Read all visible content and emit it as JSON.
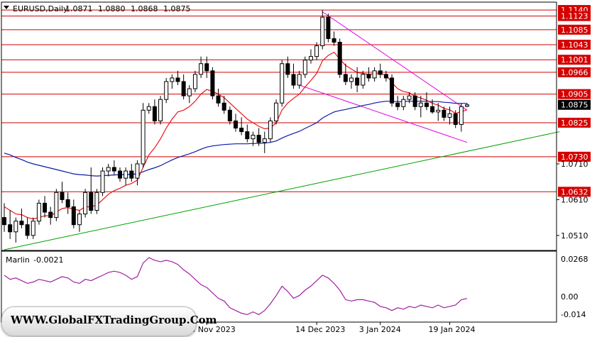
{
  "header": {
    "symbol": "EURUSD,Daily",
    "open": "1.0871",
    "high": "1.0880",
    "low": "1.0868",
    "close": "1.0875"
  },
  "indicator": {
    "name": "Marlin",
    "value": "-0.0021",
    "ticks": [
      "0.0268",
      "0.00",
      "-0.014"
    ]
  },
  "watermark": "WWW.GlobalFXTradingGroup.Com",
  "colors": {
    "bull": "#ffffff",
    "bear": "#000000",
    "level_line": "#d40000",
    "level_label_bg": "#d40000",
    "ema_fast": "#e8141a",
    "ema_slow": "#0a1aa8",
    "channel": "#e000e0",
    "trendline": "#00a000",
    "oscillator": "#a020a0"
  },
  "chart_data": {
    "type": "candlestick",
    "symbol": "EURUSD",
    "timeframe": "Daily",
    "ylim": [
      1.047,
      1.116
    ],
    "y_ticks": [
      "1.0510",
      "1.0610",
      "1.0710"
    ],
    "x_ticks": [
      "28 Nov 2023",
      "14 Dec 2023",
      "3 Jan 2024",
      "19 Jan 2024"
    ],
    "levels": [
      "1.1140",
      "1.1123",
      "1.1085",
      "1.1043",
      "1.1001",
      "1.0966",
      "1.0905",
      "1.0825",
      "1.0730",
      "1.0632"
    ],
    "current_price": "1.0875",
    "candles": [
      [
        1.056,
        1.06,
        1.052,
        1.054
      ],
      [
        1.054,
        1.058,
        1.05,
        1.052
      ],
      [
        1.052,
        1.056,
        1.049,
        1.055
      ],
      [
        1.055,
        1.0585,
        1.053,
        1.054
      ],
      [
        1.054,
        1.056,
        1.05,
        1.051
      ],
      [
        1.051,
        1.056,
        1.05,
        1.055
      ],
      [
        1.055,
        1.061,
        1.054,
        1.06
      ],
      [
        1.06,
        1.062,
        1.056,
        1.0575
      ],
      [
        1.0575,
        1.059,
        1.054,
        1.056
      ],
      [
        1.056,
        1.064,
        1.055,
        1.063
      ],
      [
        1.063,
        1.066,
        1.06,
        1.061
      ],
      [
        1.061,
        1.063,
        1.057,
        1.059
      ],
      [
        1.059,
        1.061,
        1.053,
        1.054
      ],
      [
        1.054,
        1.058,
        1.052,
        1.057
      ],
      [
        1.057,
        1.064,
        1.056,
        1.063
      ],
      [
        1.063,
        1.07,
        1.057,
        1.058
      ],
      [
        1.058,
        1.064,
        1.057,
        1.063
      ],
      [
        1.063,
        1.07,
        1.062,
        1.069
      ],
      [
        1.069,
        1.071,
        1.0675,
        1.07
      ],
      [
        1.07,
        1.072,
        1.068,
        1.069
      ],
      [
        1.069,
        1.07,
        1.066,
        1.067
      ],
      [
        1.067,
        1.07,
        1.065,
        1.069
      ],
      [
        1.069,
        1.071,
        1.066,
        1.067
      ],
      [
        1.067,
        1.072,
        1.065,
        1.071
      ],
      [
        1.071,
        1.088,
        1.07,
        1.086
      ],
      [
        1.086,
        1.088,
        1.085,
        1.087
      ],
      [
        1.087,
        1.089,
        1.082,
        1.083
      ],
      [
        1.083,
        1.09,
        1.082,
        1.089
      ],
      [
        1.089,
        1.095,
        1.088,
        1.094
      ],
      [
        1.094,
        1.096,
        1.092,
        1.095
      ],
      [
        1.095,
        1.097,
        1.093,
        1.094
      ],
      [
        1.094,
        1.096,
        1.089,
        1.09
      ],
      [
        1.09,
        1.093,
        1.088,
        1.092
      ],
      [
        1.092,
        1.097,
        1.091,
        1.096
      ],
      [
        1.096,
        1.101,
        1.095,
        1.099
      ],
      [
        1.099,
        1.101,
        1.095,
        1.097
      ],
      [
        1.097,
        1.098,
        1.089,
        1.09
      ],
      [
        1.09,
        1.092,
        1.087,
        1.088
      ],
      [
        1.088,
        1.09,
        1.085,
        1.086
      ],
      [
        1.086,
        1.087,
        1.082,
        1.083
      ],
      [
        1.083,
        1.085,
        1.08,
        1.081
      ],
      [
        1.081,
        1.084,
        1.079,
        1.08
      ],
      [
        1.08,
        1.082,
        1.077,
        1.078
      ],
      [
        1.078,
        1.08,
        1.076,
        1.079
      ],
      [
        1.079,
        1.081,
        1.076,
        1.077
      ],
      [
        1.077,
        1.08,
        1.074,
        1.078
      ],
      [
        1.078,
        1.084,
        1.077,
        1.083
      ],
      [
        1.083,
        1.089,
        1.082,
        1.088
      ],
      [
        1.088,
        1.1,
        1.087,
        1.099
      ],
      [
        1.099,
        1.101,
        1.095,
        1.096
      ],
      [
        1.096,
        1.099,
        1.092,
        1.093
      ],
      [
        1.093,
        1.097,
        1.092,
        1.096
      ],
      [
        1.096,
        1.101,
        1.095,
        1.1
      ],
      [
        1.1,
        1.103,
        1.099,
        1.101
      ],
      [
        1.101,
        1.105,
        1.1,
        1.104
      ],
      [
        1.104,
        1.114,
        1.103,
        1.112
      ],
      [
        1.112,
        1.113,
        1.105,
        1.106
      ],
      [
        1.106,
        1.108,
        1.104,
        1.105
      ],
      [
        1.105,
        1.106,
        1.095,
        1.096
      ],
      [
        1.096,
        1.099,
        1.093,
        1.094
      ],
      [
        1.094,
        1.096,
        1.092,
        1.095
      ],
      [
        1.095,
        1.098,
        1.091,
        1.093
      ],
      [
        1.093,
        1.097,
        1.092,
        1.096
      ],
      [
        1.096,
        1.098,
        1.094,
        1.095
      ],
      [
        1.095,
        1.098,
        1.094,
        1.097
      ],
      [
        1.097,
        1.099,
        1.095,
        1.096
      ],
      [
        1.096,
        1.097,
        1.094,
        1.095
      ],
      [
        1.095,
        1.096,
        1.087,
        1.088
      ],
      [
        1.088,
        1.09,
        1.086,
        1.087
      ],
      [
        1.087,
        1.09,
        1.086,
        1.089
      ],
      [
        1.089,
        1.091,
        1.088,
        1.09
      ],
      [
        1.09,
        1.091,
        1.086,
        1.087
      ],
      [
        1.087,
        1.09,
        1.084,
        1.088
      ],
      [
        1.088,
        1.091,
        1.086,
        1.087
      ],
      [
        1.087,
        1.089,
        1.085,
        1.0855
      ],
      [
        1.0855,
        1.088,
        1.083,
        1.086
      ],
      [
        1.086,
        1.087,
        1.083,
        1.084
      ],
      [
        1.084,
        1.087,
        1.082,
        1.085
      ],
      [
        1.085,
        1.086,
        1.081,
        1.082
      ],
      [
        1.082,
        1.088,
        1.08,
        1.087
      ],
      [
        1.0871,
        1.088,
        1.0868,
        1.0875
      ]
    ],
    "ema_fast": [
      1.059,
      1.058,
      1.057,
      1.0568,
      1.056,
      1.0556,
      1.056,
      1.0565,
      1.0565,
      1.0575,
      1.0585,
      1.0588,
      1.0583,
      1.058,
      1.059,
      1.059,
      1.0595,
      1.061,
      1.0625,
      1.0635,
      1.0642,
      1.065,
      1.0655,
      1.0665,
      1.07,
      1.0735,
      1.0755,
      1.078,
      1.081,
      1.0835,
      1.0855,
      1.086,
      1.087,
      1.0885,
      1.0905,
      1.0918,
      1.0913,
      1.0905,
      1.0895,
      1.088,
      1.0865,
      1.085,
      1.0835,
      1.0825,
      1.0815,
      1.0808,
      1.081,
      1.0825,
      1.086,
      1.088,
      1.0893,
      1.0905,
      1.0925,
      1.0943,
      1.0963,
      1.0998,
      1.1013,
      1.1022,
      1.1003,
      1.0985,
      1.0975,
      1.0965,
      1.0963,
      1.096,
      1.0962,
      1.0961,
      1.0959,
      1.0937,
      1.092,
      1.0912,
      1.0909,
      1.0899,
      1.0894,
      1.0888,
      1.0879,
      1.0874,
      1.0865,
      1.0861,
      1.0851,
      1.0856,
      1.0861
    ],
    "ema_slow": [
      1.074,
      1.0735,
      1.0728,
      1.0722,
      1.0715,
      1.071,
      1.0706,
      1.0702,
      1.0698,
      1.0694,
      1.069,
      1.0686,
      1.0682,
      1.068,
      1.0679,
      1.0677,
      1.0676,
      1.0677,
      1.0678,
      1.0679,
      1.068,
      1.068,
      1.0681,
      1.0682,
      1.0688,
      1.0694,
      1.0699,
      1.0705,
      1.0713,
      1.0721,
      1.0728,
      1.0733,
      1.0738,
      1.0744,
      1.0751,
      1.0757,
      1.076,
      1.0762,
      1.0764,
      1.0765,
      1.0766,
      1.0766,
      1.0766,
      1.0767,
      1.0767,
      1.0768,
      1.077,
      1.0774,
      1.0782,
      1.0789,
      1.0795,
      1.0801,
      1.0809,
      1.0817,
      1.0825,
      1.0838,
      1.0847,
      1.0855,
      1.0859,
      1.0862,
      1.0866,
      1.0869,
      1.0873,
      1.0876,
      1.088,
      1.0883,
      1.0885,
      1.0885,
      1.0884,
      1.0884,
      1.0885,
      1.0885,
      1.0885,
      1.0885,
      1.0884,
      1.0884,
      1.0882,
      1.0881,
      1.0879,
      1.0879,
      1.0879
    ],
    "oscillator": [
      0.015,
      0.012,
      0.013,
      0.011,
      0.009,
      0.01,
      0.012,
      0.011,
      0.01,
      0.012,
      0.014,
      0.013,
      0.01,
      0.009,
      0.012,
      0.011,
      0.013,
      0.015,
      0.017,
      0.018,
      0.017,
      0.015,
      0.012,
      0.014,
      0.024,
      0.028,
      0.026,
      0.025,
      0.026,
      0.025,
      0.023,
      0.019,
      0.016,
      0.012,
      0.008,
      0.006,
      0.002,
      -0.002,
      -0.004,
      -0.009,
      -0.011,
      -0.013,
      -0.014,
      -0.012,
      -0.014,
      -0.011,
      -0.006,
      0.0,
      0.007,
      0.003,
      -0.002,
      0.0,
      0.004,
      0.007,
      0.011,
      0.015,
      0.013,
      0.009,
      0.004,
      -0.003,
      -0.004,
      -0.003,
      -0.003,
      -0.004,
      -0.005,
      -0.008,
      -0.009,
      -0.011,
      -0.009,
      -0.01,
      -0.008,
      -0.009,
      -0.007,
      -0.008,
      -0.009,
      -0.007,
      -0.009,
      -0.008,
      -0.007,
      -0.003,
      -0.0021
    ],
    "osc_ylim": [
      -0.0185,
      0.0312
    ],
    "channel_upper": [
      [
        55,
        1.1135
      ],
      [
        80,
        1.086
      ]
    ],
    "channel_lower": [
      [
        51,
        1.093
      ],
      [
        80,
        1.077
      ]
    ],
    "trendline": [
      [
        0,
        1.047
      ],
      [
        96,
        1.08
      ]
    ],
    "grid": false
  }
}
